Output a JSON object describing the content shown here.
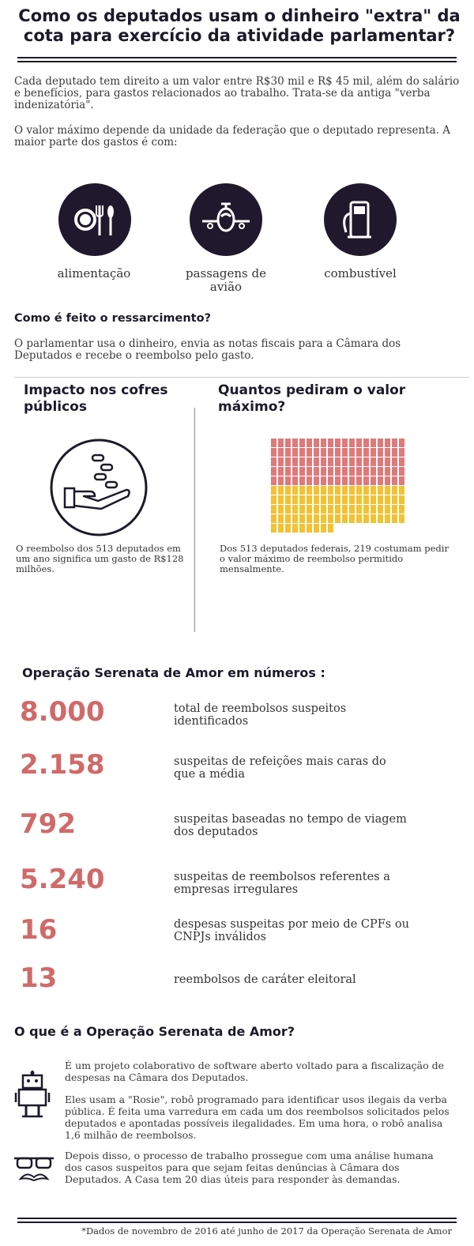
{
  "header": {
    "title": "Como os deputados usam o dinheiro \"extra\" da cota para exercício da atividade parlamentar?"
  },
  "intro": {
    "p1": "Cada deputado tem direito a um valor entre R$30 mil e R$ 45 mil, além do salário e benefícios, para gastos relacionados ao trabalho. Trata-se da antiga \"verba indenizatória\".",
    "p2": "O valor máximo depende da unidade da federação que o deputado representa. A maior parte dos gastos é com:"
  },
  "categories": [
    {
      "icon": "cutlery-icon",
      "label": "alimentação"
    },
    {
      "icon": "airplane-icon",
      "label": "passagens de avião"
    },
    {
      "icon": "fuel-pump-icon",
      "label": "combustível"
    }
  ],
  "reimbursement": {
    "heading": "Como é feito o ressarcimento?",
    "text": "O parlamentar usa o dinheiro, envia as notas fiscais para a Câmara dos Deputados e recebe o reembolso pelo gasto."
  },
  "impact": {
    "heading": "Impacto nos cofres públicos",
    "text": "O reembolso dos 513 deputados em um ano significa um gasto de R$128 milhões."
  },
  "max_value": {
    "heading": "Quantos pediram o valor máximo?",
    "text": "Dos 513 deputados federais, 219 costumam pedir o valor máximo de reembolso permitido mensalmente.",
    "colors": {
      "red": "#e07979",
      "yellow": "#f2c232"
    }
  },
  "operation_numbers": {
    "heading": "Operação Serenata de Amor em números :",
    "items": [
      {
        "value": "8.000",
        "text": "total de reembolsos suspeitos identificados"
      },
      {
        "value": "2.158",
        "text": "suspeitas de refeições mais caras do que a média"
      },
      {
        "value": "792",
        "text": "suspeitas baseadas no tempo de viagem dos deputados"
      },
      {
        "value": "5.240",
        "text": "suspeitas de reembolsos referentes a empresas irregulares"
      },
      {
        "value": "16",
        "text": "despesas suspeitas por meio de CPFs ou CNPJs inválidos"
      },
      {
        "value": "13",
        "text": "reembolsos de caráter eleitoral"
      }
    ],
    "accent": "#d06a69"
  },
  "what_is": {
    "heading": "O que é a Operação Serenata de Amor?",
    "p1": "É um projeto colaborativo de software aberto voltado para a fiscalização de despesas na Câmara dos Deputados.",
    "p2": "Eles usam a \"Rosie\", robô programado para identificar usos ilegais da verba pública. É feita uma varredura em cada um dos reembolsos solicitados pelos deputados e apontadas possíveis ilegalidades. Em uma hora, o robô analisa 1,6 milhão de reembolsos.",
    "p3": "Depois disso, o processo de trabalho prossegue com uma análise humana dos casos suspeitos para que sejam feitas denúncias à Câmara dos Deputados. A Casa tem 20 dias úteis para responder às demandas."
  },
  "footer": {
    "note": "*Dados de novembro de 2016 até junho de 2017 da Operação Serenata de Amor"
  }
}
